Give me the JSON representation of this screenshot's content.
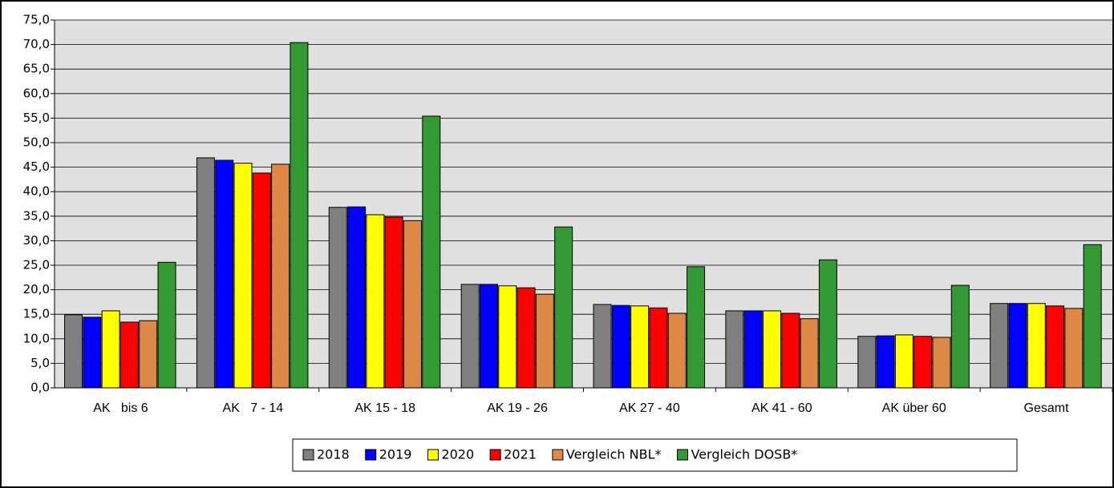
{
  "chart_data": {
    "type": "bar",
    "categories": [
      "AK   bis 6",
      "AK   7 - 14",
      "AK 15 - 18",
      "AK 19 - 26",
      "AK 27 - 40",
      "AK 41 - 60",
      "AK über 60",
      "Gesamt"
    ],
    "series": [
      {
        "name": "2018",
        "color": "#808080",
        "values": [
          14.9,
          46.9,
          36.8,
          21.1,
          17.0,
          15.7,
          10.5,
          17.2
        ]
      },
      {
        "name": "2019",
        "color": "#0000ff",
        "values": [
          14.4,
          46.4,
          36.9,
          21.1,
          16.8,
          15.7,
          10.6,
          17.2
        ]
      },
      {
        "name": "2020",
        "color": "#ffff00",
        "values": [
          15.7,
          45.8,
          35.3,
          20.8,
          16.7,
          15.7,
          10.8,
          17.2
        ]
      },
      {
        "name": "2021",
        "color": "#ff0000",
        "values": [
          13.4,
          43.8,
          34.8,
          20.4,
          16.3,
          15.2,
          10.5,
          16.7
        ]
      },
      {
        "name": "Vergleich NBL*",
        "color": "#dd8844",
        "values": [
          13.7,
          45.6,
          34.1,
          19.1,
          15.2,
          14.1,
          10.3,
          16.2
        ]
      },
      {
        "name": "Vergleich DOSB*",
        "color": "#339933",
        "values": [
          25.6,
          70.4,
          55.4,
          32.8,
          24.7,
          26.1,
          20.9,
          29.2
        ]
      }
    ],
    "ylim": [
      0,
      75
    ],
    "yticks": [
      {
        "value": 0,
        "label": "0,0"
      },
      {
        "value": 5,
        "label": "5,0"
      },
      {
        "value": 10,
        "label": "10,0"
      },
      {
        "value": 15,
        "label": "15,0"
      },
      {
        "value": 20,
        "label": "20,0"
      },
      {
        "value": 25,
        "label": "25,0"
      },
      {
        "value": 30,
        "label": "30,0"
      },
      {
        "value": 35,
        "label": "35,0"
      },
      {
        "value": 40,
        "label": "40,0"
      },
      {
        "value": 45,
        "label": "45,0"
      },
      {
        "value": 50,
        "label": "50,0"
      },
      {
        "value": 55,
        "label": "55,0"
      },
      {
        "value": 60,
        "label": "60,0"
      },
      {
        "value": 65,
        "label": "65,0"
      },
      {
        "value": 70,
        "label": "70,0"
      },
      {
        "value": 75,
        "label": "75,0"
      }
    ],
    "grid": true,
    "legend": "bottom"
  }
}
